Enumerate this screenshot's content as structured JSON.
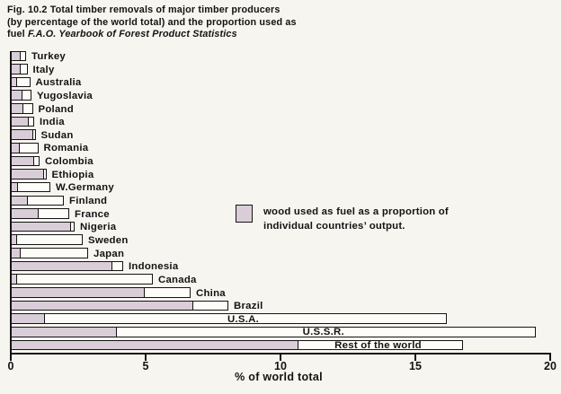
{
  "title": {
    "line1": "Fig. 10.2  Total timber removals of major timber producers",
    "line2": "(by percentage of the world total) and the proportion used as",
    "line3_prefix": "fuel ",
    "line3_source": "F.A.O. Yearbook of Forest Product Statistics"
  },
  "legend": {
    "line1": "wood used as fuel as a proportion of",
    "line2": "individual countries’ output."
  },
  "axis": {
    "title": "% of world total",
    "ticks": [
      "0",
      "5",
      "10",
      "15",
      "20"
    ]
  },
  "colors": {
    "background": "#f7f5ef",
    "bar_outline": "#141414",
    "bar_total_fill": "#fdfcf8",
    "bar_fuel_fill": "#d9cdd8",
    "text": "#131313"
  },
  "chart_data": {
    "type": "bar",
    "orientation": "horizontal",
    "title": "Total timber removals of major timber producers (by percentage of the world total) and the proportion used as fuel",
    "xlabel": "% of world total",
    "xlim": [
      0,
      20
    ],
    "xticks": [
      0,
      5,
      10,
      15,
      20
    ],
    "grid": false,
    "legend_entry": "wood used as fuel as a proportion of individual countries' output.",
    "categories": [
      "Turkey",
      "Italy",
      "Australia",
      "Yugoslavia",
      "Poland",
      "India",
      "Sudan",
      "Romania",
      "Colombia",
      "Ethiopia",
      "W.Germany",
      "Finland",
      "France",
      "Nigeria",
      "Sweden",
      "Japan",
      "Indonesia",
      "Canada",
      "China",
      "Brazil",
      "U.S.A.",
      "U.S.S.R.",
      "Rest of the world"
    ],
    "series": [
      {
        "name": "total removals (% of world total)",
        "values": [
          0.5,
          0.55,
          0.65,
          0.7,
          0.75,
          0.8,
          0.85,
          0.95,
          1.0,
          1.25,
          1.4,
          1.9,
          2.1,
          2.3,
          2.6,
          2.8,
          4.1,
          5.2,
          6.6,
          8.0,
          16.1,
          19.4,
          16.7
        ]
      },
      {
        "name": "wood used as fuel",
        "values": [
          0.3,
          0.3,
          0.15,
          0.35,
          0.4,
          0.6,
          0.75,
          0.25,
          0.8,
          1.15,
          0.2,
          0.55,
          0.95,
          2.15,
          0.15,
          0.3,
          3.7,
          0.15,
          4.9,
          6.7,
          1.2,
          3.85,
          10.6
        ]
      }
    ],
    "labels_inside_bar": [
      "U.S.A.",
      "U.S.S.R.",
      "Rest of the world"
    ]
  }
}
